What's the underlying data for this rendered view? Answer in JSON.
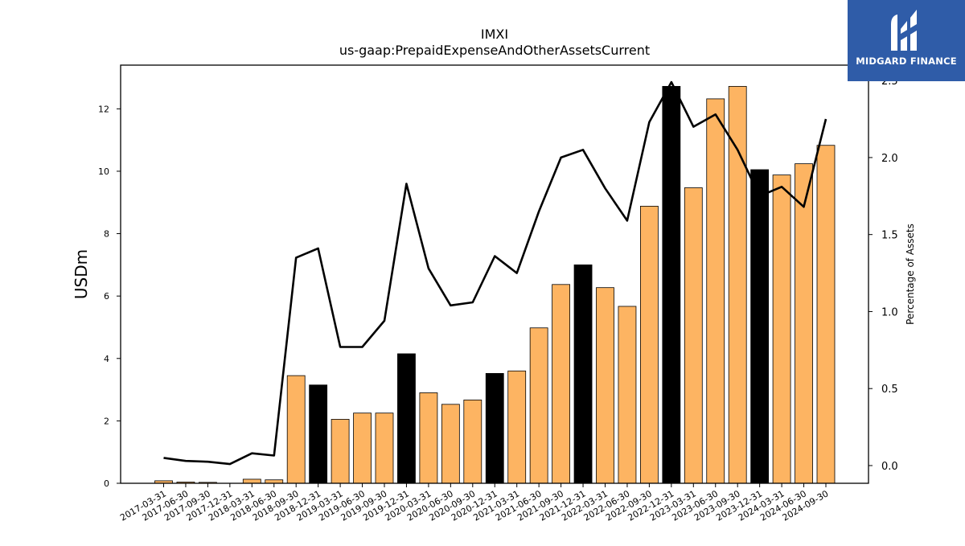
{
  "chart_data": {
    "type": "bar",
    "title": "IMXI",
    "subtitle": "us-gaap:PrepaidExpenseAndOtherAssetsCurrent",
    "ylabel": "USDm",
    "y2label": "Percentage of Assets",
    "ylim": [
      0,
      13.4
    ],
    "y2lim": [
      -0.115,
      2.6
    ],
    "yticks": [
      0,
      2,
      4,
      6,
      8,
      10,
      12
    ],
    "y2ticks": [
      "0.0",
      "0.5",
      "1.0",
      "1.5",
      "2.0",
      "2.5"
    ],
    "categories": [
      "2017-03-31",
      "2017-06-30",
      "2017-09-30",
      "2017-12-31",
      "2018-03-31",
      "2018-06-30",
      "2018-09-30",
      "2018-12-31",
      "2019-03-31",
      "2019-06-30",
      "2019-09-30",
      "2019-12-31",
      "2020-03-31",
      "2020-06-30",
      "2020-09-30",
      "2020-12-31",
      "2021-03-31",
      "2021-06-30",
      "2021-09-30",
      "2021-12-31",
      "2022-03-31",
      "2022-06-30",
      "2022-09-30",
      "2022-12-31",
      "2023-03-31",
      "2023-06-30",
      "2023-09-30",
      "2023-12-31",
      "2024-03-31",
      "2024-06-30",
      "2024-09-30"
    ],
    "series": [
      {
        "type": "bar",
        "values": [
          0.08,
          0.04,
          0.03,
          0.0,
          0.13,
          0.11,
          3.45,
          3.15,
          2.05,
          2.25,
          2.25,
          4.15,
          2.9,
          2.53,
          2.67,
          3.52,
          3.6,
          4.98,
          6.37,
          7.0,
          6.27,
          5.67,
          8.88,
          12.72,
          9.47,
          12.32,
          12.72,
          10.05,
          9.88,
          10.24,
          10.83
        ],
        "highlight": [
          false,
          false,
          false,
          true,
          false,
          false,
          false,
          true,
          false,
          false,
          false,
          true,
          false,
          false,
          false,
          true,
          false,
          false,
          false,
          true,
          false,
          false,
          false,
          true,
          false,
          false,
          false,
          true,
          false,
          false,
          false
        ]
      },
      {
        "type": "line",
        "axis": "right",
        "values": [
          0.05,
          0.03,
          0.025,
          0.01,
          0.08,
          0.065,
          1.35,
          1.41,
          0.77,
          0.77,
          0.94,
          1.83,
          1.28,
          1.04,
          1.06,
          1.36,
          1.25,
          1.65,
          2.0,
          2.05,
          1.8,
          1.59,
          2.23,
          2.49,
          2.2,
          2.28,
          2.05,
          1.75,
          1.81,
          1.68,
          2.25
        ]
      }
    ],
    "colors": {
      "bar": "#fdb462",
      "bar_highlight": "#000000",
      "line": "#000000"
    }
  },
  "logo": {
    "text": "MIDGARD FINANCE"
  }
}
